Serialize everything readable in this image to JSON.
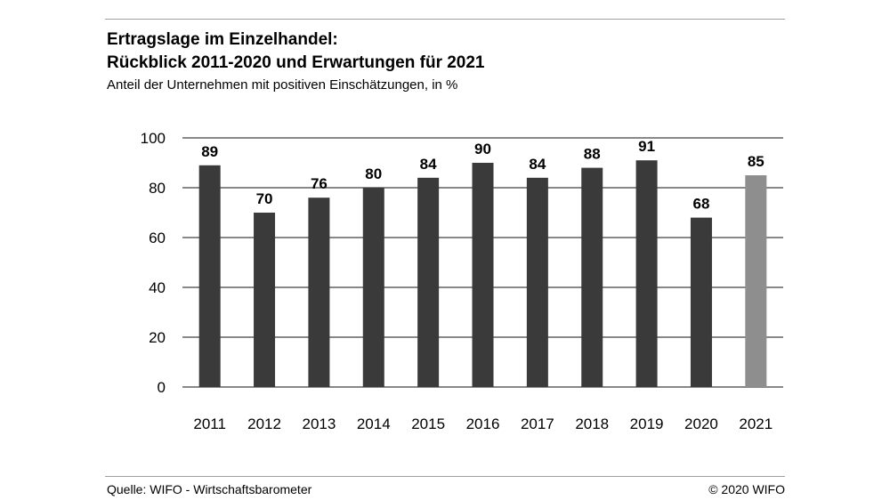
{
  "header": {
    "title_line1": "Ertragslage im Einzelhandel:",
    "title_line2": "Rückblick 2011-2020 und Erwartungen für 2021",
    "subtitle": "Anteil der Unternehmen mit positiven Einschätzungen, in %"
  },
  "footer": {
    "source": "Quelle: WIFO - Wirtschaftsbarometer",
    "copyright": "© 2020 WIFO"
  },
  "chart_data": {
    "type": "bar",
    "title": "Ertragslage im Einzelhandel: Rückblick 2011-2020 und Erwartungen für 2021",
    "subtitle": "Anteil der Unternehmen mit positiven Einschätzungen, in %",
    "categories": [
      "2011",
      "2012",
      "2013",
      "2014",
      "2015",
      "2016",
      "2017",
      "2018",
      "2019",
      "2020",
      "2021"
    ],
    "values": [
      89,
      70,
      76,
      80,
      84,
      90,
      84,
      88,
      91,
      68,
      85
    ],
    "data_labels": [
      "89",
      "70",
      "76",
      "80",
      "84",
      "90",
      "84",
      "88",
      "91",
      "68",
      "85"
    ],
    "yticks": [
      0,
      20,
      40,
      60,
      80,
      100
    ],
    "ylim": [
      0,
      100
    ],
    "xlabel": "",
    "ylabel": "",
    "grid": true,
    "colors": {
      "actual": "#3a3a3a",
      "forecast": "#8e8e8e",
      "grid": "#111111"
    },
    "forecast_index": 10
  }
}
